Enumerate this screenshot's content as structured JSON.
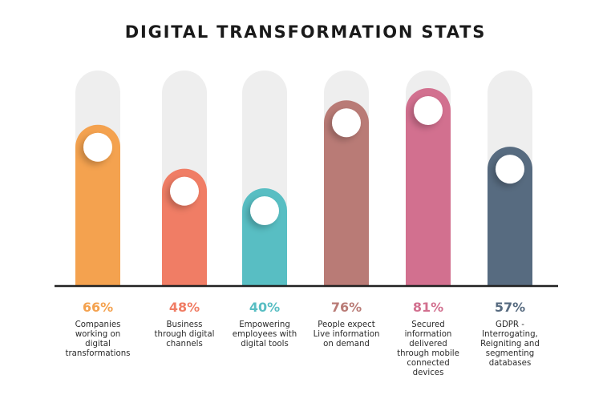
{
  "title": "DIGITAL TRANSFORMATION STATS",
  "chart_data": {
    "type": "bar",
    "title": "DIGITAL TRANSFORMATION STATS",
    "ylim": [
      0,
      100
    ],
    "categories": [
      "Companies working on digital transformations",
      "Business through digital channels",
      "Empowering employees with digital tools",
      "People expect Live information on demand",
      "Secured information delivered through mobile connected devices",
      "GDPR - Interrogating, Reigniting and segmenting databases"
    ],
    "values": [
      66,
      48,
      40,
      76,
      81,
      57
    ],
    "value_labels": [
      "66%",
      "48%",
      "40%",
      "76%",
      "81%",
      "57%"
    ],
    "label_lines": [
      "Companies\nworking on\ndigital\ntransformations",
      "Business\nthrough digital\nchannels",
      "Empowering\nemployees with\ndigital tools",
      "People expect\nLive information\non demand",
      "Secured\ninformation\ndelivered\nthrough mobile\nconnected\ndevices",
      "GDPR -\nInterrogating,\nReigniting and\nsegmenting\ndatabases"
    ],
    "colors": [
      "#f4a24f",
      "#f07d65",
      "#58bec3",
      "#b97b76",
      "#d2708f",
      "#576b80"
    ],
    "track_color": "#eeeeee",
    "baseline_color": "#222222"
  }
}
